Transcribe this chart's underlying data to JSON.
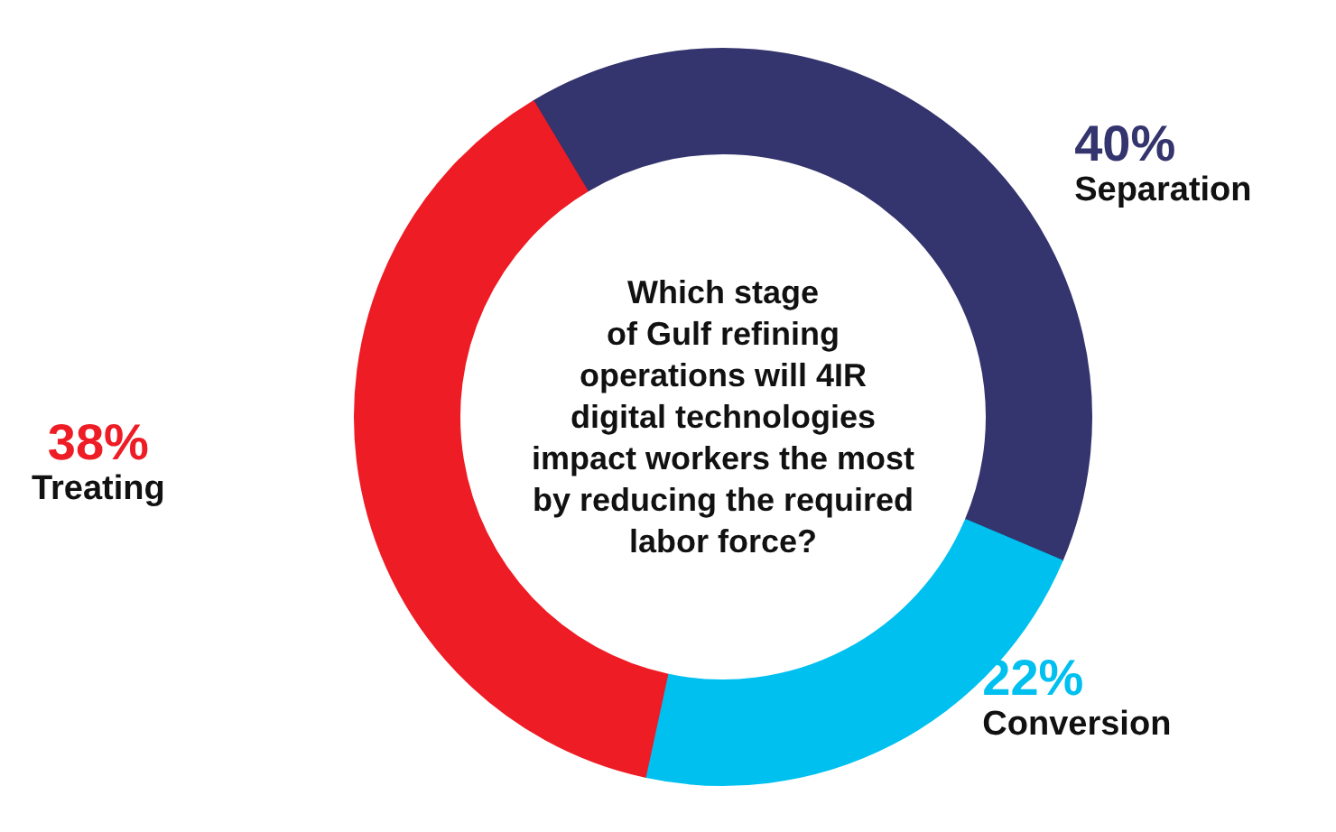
{
  "chart_data": {
    "type": "donut",
    "title": "Which stage\nof Gulf refining\noperations will 4IR\ndigital technologies\nimpact workers the most\nby reducing the required\nlabor force?",
    "categories": [
      "Separation",
      "Conversion",
      "Treating"
    ],
    "values": [
      40,
      22,
      38
    ],
    "colors": [
      "#34346e",
      "#00c0f0",
      "#ee1c25"
    ],
    "value_labels": [
      "40%",
      "22%",
      "38%"
    ]
  }
}
